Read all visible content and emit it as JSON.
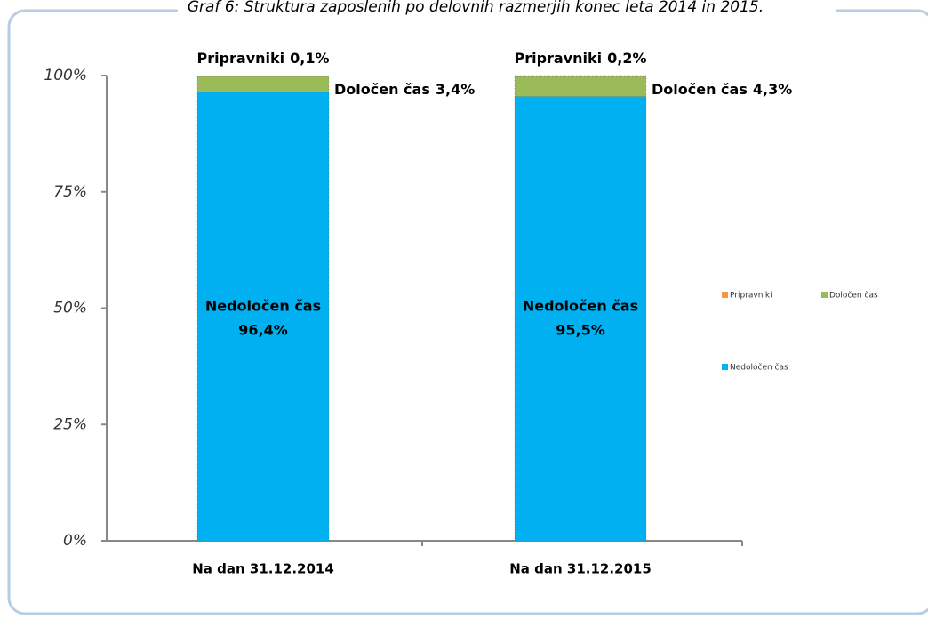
{
  "chart_data": {
    "type": "stacked_bar",
    "title": "Graf 6: Struktura zaposlenih po delovnih razmerjih konec leta 2014 in 2015.",
    "categories": [
      "Na dan 31.12.2014",
      "Na dan 31.12.2015"
    ],
    "series": [
      {
        "name": "Nedoločen čas",
        "color": "#00b0f0",
        "values": [
          96.4,
          95.5
        ],
        "value_labels": [
          "96,4%",
          "95,5%"
        ]
      },
      {
        "name": "Določen čas",
        "color": "#9bbb59",
        "values": [
          3.4,
          4.3
        ],
        "value_labels": [
          "3,4%",
          "4,3%"
        ]
      },
      {
        "name": "Pripravniki",
        "color": "#f79646",
        "values": [
          0.1,
          0.2
        ],
        "value_labels": [
          "0,1%",
          "0,2%"
        ]
      }
    ],
    "ylim": [
      0,
      100
    ],
    "yticks": [
      {
        "value": 0,
        "label": "0%"
      },
      {
        "value": 25,
        "label": "25%"
      },
      {
        "value": 50,
        "label": "50%"
      },
      {
        "value": 75,
        "label": "75%"
      },
      {
        "value": 100,
        "label": "100%"
      }
    ]
  }
}
